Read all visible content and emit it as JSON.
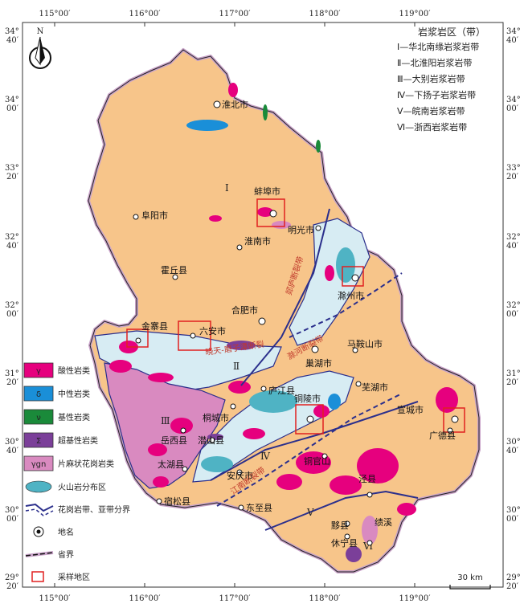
{
  "compass": {
    "label": "N"
  },
  "coords": {
    "lon_top": [
      "115°00′",
      "116°00′",
      "117°00′",
      "118°00′",
      "119°00′"
    ],
    "lon_bottom": [
      "115°00′",
      "116°00′",
      "117°00′",
      "118°00′",
      "119°00′"
    ],
    "lat": [
      {
        "deg": "34°",
        "min": "40′"
      },
      {
        "deg": "34°",
        "min": "00′"
      },
      {
        "deg": "33°",
        "min": "20′"
      },
      {
        "deg": "32°",
        "min": "40′"
      },
      {
        "deg": "32°",
        "min": "00′"
      },
      {
        "deg": "31°",
        "min": "20′"
      },
      {
        "deg": "30°",
        "min": "40′"
      },
      {
        "deg": "30°",
        "min": "00′"
      },
      {
        "deg": "29°",
        "min": "20′"
      }
    ]
  },
  "zones_legend": {
    "title": "岩浆岩区（带）",
    "items": [
      "Ⅰ—华北南缘岩浆岩带",
      "Ⅱ—北淮阳岩浆岩带",
      "Ⅲ—大别岩浆岩带",
      "Ⅳ—下扬子岩浆岩带",
      "Ⅴ—皖南岩浆岩带",
      "Ⅵ—浙西岩浆岩带"
    ]
  },
  "zone_labels": [
    "Ⅰ",
    "Ⅱ",
    "Ⅲ",
    "Ⅳ",
    "Ⅴ",
    "Ⅵ"
  ],
  "fault_labels": [
    "郯庐断裂带",
    "晓天-磨子潭断裂",
    "滁河断裂带",
    "江南断裂带"
  ],
  "cities": [
    "淮北市",
    "蚌埠市",
    "阜阳市",
    "淮南市",
    "明光市",
    "霍丘县",
    "滁州市",
    "合肥市",
    "金寨县",
    "六安市",
    "马鞍山市",
    "巢湖市",
    "芜湖市",
    "庐江县",
    "铜陵市",
    "宣城市",
    "桐城市",
    "岳西县",
    "潜山县",
    "广德县",
    "太湖县",
    "安庆市",
    "铜官山",
    "宿松县",
    "东至县",
    "泾县",
    "黟县",
    "休宁县",
    "绩溪"
  ],
  "lithology_legend": [
    {
      "sym": "γ",
      "label": "酸性岩类",
      "color": "#e6007e"
    },
    {
      "sym": "δ",
      "label": "中性岩类",
      "color": "#1a8fd8"
    },
    {
      "sym": "ν",
      "label": "基性岩类",
      "color": "#1a8a3a"
    },
    {
      "sym": "Σ",
      "label": "超基性岩类",
      "color": "#7b3f99"
    },
    {
      "sym": "γgn",
      "label": "片麻状花岗岩类",
      "color": "#d98ac0"
    },
    {
      "sym": "",
      "label": "火山岩分布区",
      "color": "#4fb3c4"
    },
    {
      "sym": "",
      "label": "花岗岩带、亚带分界",
      "color": "#2b2f8c"
    },
    {
      "sym": "",
      "label": "地名",
      "color": "#111111"
    },
    {
      "sym": "",
      "label": "省界",
      "color": "#111111"
    },
    {
      "sym": "",
      "label": "采样地区",
      "color": "#e02020"
    }
  ],
  "scale": {
    "label": "30 km"
  },
  "colors": {
    "base": "#f7c58a",
    "border": "#c9a3c9",
    "acid": "#e6007e",
    "gneiss": "#d98ac0",
    "volcanic": "#4fb3c4",
    "lightblue": "#d7ecf3",
    "zone_line": "#2b2f8c",
    "sample": "#e02020"
  }
}
